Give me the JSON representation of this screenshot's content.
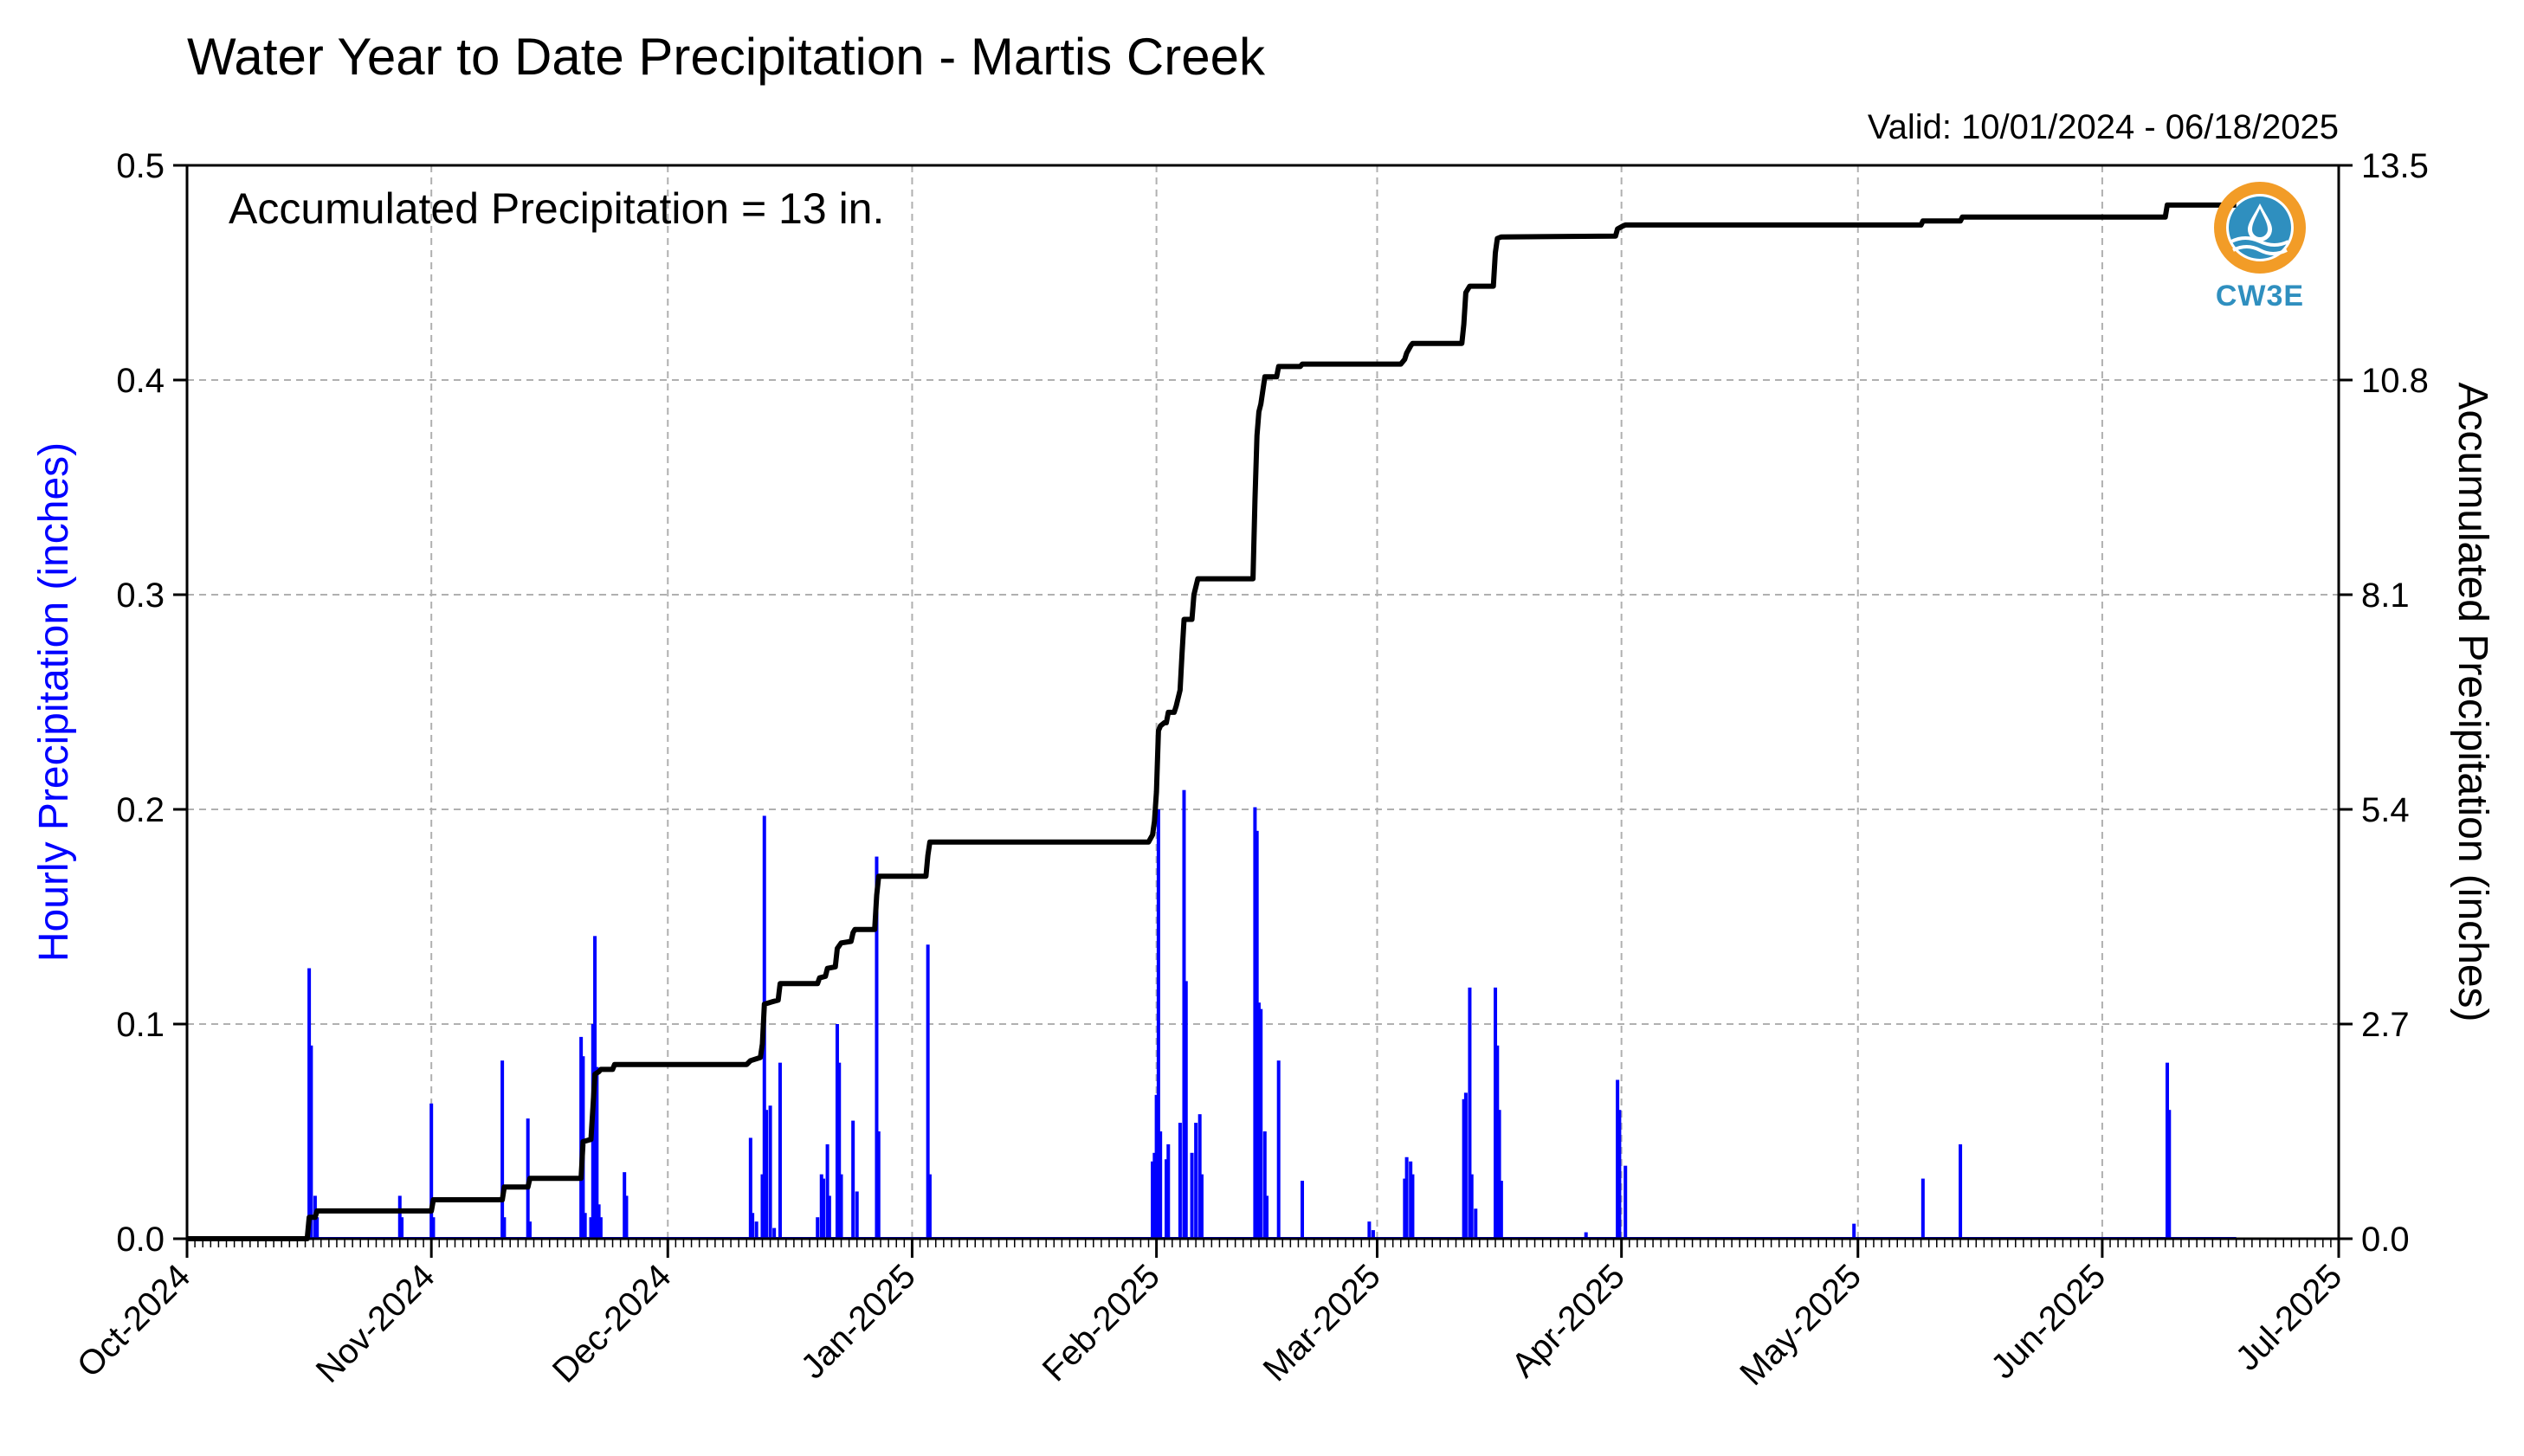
{
  "chart_data": {
    "type": "bar+line",
    "title": "Water Year to Date Precipitation - Martis Creek",
    "subtitle": "Valid: 10/01/2024 - 06/18/2025",
    "annotation": "Accumulated Precipitation = 13 in.",
    "ylabel_left": "Hourly Precipitation (inches)",
    "ylabel_right": "Accumulated Precipitation (inches)",
    "y_left_lim": [
      0,
      0.5
    ],
    "y_right_lim": [
      0,
      13.5
    ],
    "y_left_ticks": [
      "0.0",
      "0.1",
      "0.2",
      "0.3",
      "0.4",
      "0.5"
    ],
    "y_right_ticks": [
      "0.0",
      "2.7",
      "5.4",
      "8.1",
      "10.8",
      "13.5"
    ],
    "x_start": "2024-10-01",
    "x_end": "2025-07-01",
    "x_ticks": [
      "Oct-2024",
      "Nov-2024",
      "Dec-2024",
      "Jan-2025",
      "Feb-2025",
      "Mar-2025",
      "Apr-2025",
      "May-2025",
      "Jun-2025",
      "Jul-2025"
    ],
    "grid": true,
    "colors": {
      "hourly": "#0000ff",
      "accumulated": "#000000",
      "grid": "#b0b0b0",
      "left_axis_label": "#0000ff"
    },
    "hourly_series": {
      "name": "Hourly Precipitation",
      "points": [
        [
          "2024-10-16T12",
          0.126
        ],
        [
          "2024-10-16T18",
          0.09
        ],
        [
          "2024-10-17T06",
          0.02
        ],
        [
          "2024-10-17T12",
          0.01
        ],
        [
          "2024-10-28T00",
          0.02
        ],
        [
          "2024-10-28T06",
          0.01
        ],
        [
          "2024-11-01T00",
          0.063
        ],
        [
          "2024-11-01T06",
          0.01
        ],
        [
          "2024-11-10T00",
          0.083
        ],
        [
          "2024-11-10T06",
          0.01
        ],
        [
          "2024-11-13T06",
          0.056
        ],
        [
          "2024-11-13T12",
          0.008
        ],
        [
          "2024-11-20T00",
          0.094
        ],
        [
          "2024-11-20T06",
          0.085
        ],
        [
          "2024-11-20T12",
          0.012
        ],
        [
          "2024-11-21T06",
          0.01
        ],
        [
          "2024-11-21T12",
          0.1
        ],
        [
          "2024-11-21T18",
          0.141
        ],
        [
          "2024-11-22T00",
          0.08
        ],
        [
          "2024-11-22T06",
          0.016
        ],
        [
          "2024-11-22T12",
          0.01
        ],
        [
          "2024-11-25T12",
          0.031
        ],
        [
          "2024-11-25T18",
          0.02
        ],
        [
          "2024-12-11T12",
          0.047
        ],
        [
          "2024-12-11T18",
          0.012
        ],
        [
          "2024-12-12T06",
          0.008
        ],
        [
          "2024-12-13T00",
          0.03
        ],
        [
          "2024-12-13T06",
          0.197
        ],
        [
          "2024-12-13T12",
          0.06
        ],
        [
          "2024-12-14T00",
          0.062
        ],
        [
          "2024-12-14T12",
          0.005
        ],
        [
          "2024-12-15T06",
          0.082
        ],
        [
          "2024-12-20T00",
          0.01
        ],
        [
          "2024-12-20T12",
          0.03
        ],
        [
          "2024-12-20T18",
          0.028
        ],
        [
          "2024-12-21T06",
          0.044
        ],
        [
          "2024-12-21T12",
          0.02
        ],
        [
          "2024-12-22T12",
          0.1
        ],
        [
          "2024-12-22T18",
          0.082
        ],
        [
          "2024-12-23T00",
          0.03
        ],
        [
          "2024-12-24T12",
          0.055
        ],
        [
          "2024-12-25T00",
          0.022
        ],
        [
          "2024-12-27T12",
          0.178
        ],
        [
          "2024-12-27T18",
          0.05
        ],
        [
          "2025-01-03T00",
          0.137
        ],
        [
          "2025-01-03T06",
          0.03
        ],
        [
          "2025-01-31T12",
          0.036
        ],
        [
          "2025-01-31T18",
          0.04
        ],
        [
          "2025-02-01T00",
          0.067
        ],
        [
          "2025-02-01T06",
          0.2
        ],
        [
          "2025-02-01T12",
          0.05
        ],
        [
          "2025-02-02T06",
          0.037
        ],
        [
          "2025-02-02T12",
          0.044
        ],
        [
          "2025-02-04T00",
          0.054
        ],
        [
          "2025-02-04T12",
          0.209
        ],
        [
          "2025-02-04T18",
          0.12
        ],
        [
          "2025-02-05T12",
          0.04
        ],
        [
          "2025-02-06T00",
          0.054
        ],
        [
          "2025-02-06T12",
          0.058
        ],
        [
          "2025-02-06T18",
          0.03
        ],
        [
          "2025-02-13T12",
          0.201
        ],
        [
          "2025-02-13T18",
          0.19
        ],
        [
          "2025-02-14T00",
          0.11
        ],
        [
          "2025-02-14T06",
          0.107
        ],
        [
          "2025-02-14T18",
          0.05
        ],
        [
          "2025-02-15T00",
          0.02
        ],
        [
          "2025-02-16T12",
          0.083
        ],
        [
          "2025-02-19T12",
          0.027
        ],
        [
          "2025-02-28T00",
          0.008
        ],
        [
          "2025-02-28T12",
          0.004
        ],
        [
          "2025-03-04T12",
          0.028
        ],
        [
          "2025-03-04T18",
          0.038
        ],
        [
          "2025-03-05T06",
          0.036
        ],
        [
          "2025-03-05T12",
          0.03
        ],
        [
          "2025-03-12T00",
          0.065
        ],
        [
          "2025-03-12T06",
          0.068
        ],
        [
          "2025-03-12T18",
          0.117
        ],
        [
          "2025-03-13T00",
          0.03
        ],
        [
          "2025-03-13T12",
          0.014
        ],
        [
          "2025-03-16T00",
          0.117
        ],
        [
          "2025-03-16T06",
          0.09
        ],
        [
          "2025-03-16T12",
          0.06
        ],
        [
          "2025-03-16T18",
          0.027
        ],
        [
          "2025-03-27T12",
          0.003
        ],
        [
          "2025-03-31T12",
          0.074
        ],
        [
          "2025-03-31T18",
          0.06
        ],
        [
          "2025-04-01T12",
          0.034
        ],
        [
          "2025-04-30T12",
          0.007
        ],
        [
          "2025-05-09T06",
          0.028
        ],
        [
          "2025-05-14T00",
          0.044
        ],
        [
          "2025-06-09T06",
          0.082
        ],
        [
          "2025-06-09T12",
          0.06
        ]
      ]
    },
    "accumulated_series": {
      "name": "Accumulated Precipitation",
      "points": [
        [
          "2024-10-01T00",
          0.0
        ],
        [
          "2024-10-16T06",
          0.0
        ],
        [
          "2024-10-16T12",
          0.27
        ],
        [
          "2024-10-17T06",
          0.27
        ],
        [
          "2024-10-17T12",
          0.35
        ],
        [
          "2024-11-01T00",
          0.35
        ],
        [
          "2024-11-01T06",
          0.49
        ],
        [
          "2024-11-10T00",
          0.49
        ],
        [
          "2024-11-10T06",
          0.65
        ],
        [
          "2024-11-13T06",
          0.65
        ],
        [
          "2024-11-13T12",
          0.76
        ],
        [
          "2024-11-20T00",
          0.76
        ],
        [
          "2024-11-20T06",
          1.22
        ],
        [
          "2024-11-21T06",
          1.25
        ],
        [
          "2024-11-21T12",
          1.65
        ],
        [
          "2024-11-21T18",
          2.07
        ],
        [
          "2024-11-22T06",
          2.1
        ],
        [
          "2024-11-22T12",
          2.13
        ],
        [
          "2024-11-24T00",
          2.13
        ],
        [
          "2024-11-24T06",
          2.19
        ],
        [
          "2024-12-11T00",
          2.19
        ],
        [
          "2024-12-11T12",
          2.24
        ],
        [
          "2024-12-12T18",
          2.28
        ],
        [
          "2024-12-13T00",
          2.45
        ],
        [
          "2024-12-13T06",
          2.95
        ],
        [
          "2024-12-14T06",
          2.98
        ],
        [
          "2024-12-15T00",
          3.0
        ],
        [
          "2024-12-15T06",
          3.21
        ],
        [
          "2024-12-20T00",
          3.21
        ],
        [
          "2024-12-20T06",
          3.28
        ],
        [
          "2024-12-21T00",
          3.3
        ],
        [
          "2024-12-21T06",
          3.4
        ],
        [
          "2024-12-22T06",
          3.42
        ],
        [
          "2024-12-22T12",
          3.65
        ],
        [
          "2024-12-23T00",
          3.72
        ],
        [
          "2024-12-24T06",
          3.74
        ],
        [
          "2024-12-24T12",
          3.85
        ],
        [
          "2024-12-24T18",
          3.89
        ],
        [
          "2024-12-27T06",
          3.89
        ],
        [
          "2024-12-27T12",
          4.32
        ],
        [
          "2024-12-27T18",
          4.56
        ],
        [
          "2025-01-02T18",
          4.56
        ],
        [
          "2025-01-03T00",
          4.82
        ],
        [
          "2025-01-03T06",
          4.99
        ],
        [
          "2025-01-31T00",
          4.99
        ],
        [
          "2025-01-31T12",
          5.08
        ],
        [
          "2025-01-31T18",
          5.25
        ],
        [
          "2025-02-01T00",
          5.62
        ],
        [
          "2025-02-01T06",
          6.39
        ],
        [
          "2025-02-01T12",
          6.45
        ],
        [
          "2025-02-02T00",
          6.49
        ],
        [
          "2025-02-02T06",
          6.49
        ],
        [
          "2025-02-02T12",
          6.62
        ],
        [
          "2025-02-03T06",
          6.62
        ],
        [
          "2025-02-03T12",
          6.7
        ],
        [
          "2025-02-04T00",
          6.9
        ],
        [
          "2025-02-04T06",
          7.37
        ],
        [
          "2025-02-04T12",
          7.79
        ],
        [
          "2025-02-05T12",
          7.79
        ],
        [
          "2025-02-05T18",
          8.1
        ],
        [
          "2025-02-06T06",
          8.3
        ],
        [
          "2025-02-13T06",
          8.3
        ],
        [
          "2025-02-13T12",
          9.3
        ],
        [
          "2025-02-13T18",
          10.1
        ],
        [
          "2025-02-14T00",
          10.4
        ],
        [
          "2025-02-14T06",
          10.5
        ],
        [
          "2025-02-14T18",
          10.84
        ],
        [
          "2025-02-16T06",
          10.84
        ],
        [
          "2025-02-16T12",
          10.97
        ],
        [
          "2025-02-19T06",
          10.97
        ],
        [
          "2025-02-19T12",
          11.0
        ],
        [
          "2025-03-04T00",
          11.0
        ],
        [
          "2025-03-04T12",
          11.06
        ],
        [
          "2025-03-04T18",
          11.14
        ],
        [
          "2025-03-05T06",
          11.23
        ],
        [
          "2025-03-05T12",
          11.26
        ],
        [
          "2025-03-11T18",
          11.26
        ],
        [
          "2025-03-12T00",
          11.5
        ],
        [
          "2025-03-12T06",
          11.9
        ],
        [
          "2025-03-12T18",
          11.98
        ],
        [
          "2025-03-15T18",
          11.98
        ],
        [
          "2025-03-16T00",
          12.4
        ],
        [
          "2025-03-16T06",
          12.58
        ],
        [
          "2025-03-16T18",
          12.6
        ],
        [
          "2025-03-31T00",
          12.61
        ],
        [
          "2025-03-31T06",
          12.61
        ],
        [
          "2025-03-31T12",
          12.7
        ],
        [
          "2025-04-01T06",
          12.74
        ],
        [
          "2025-04-01T12",
          12.75
        ],
        [
          "2025-05-09T00",
          12.75
        ],
        [
          "2025-05-09T06",
          12.8
        ],
        [
          "2025-05-14T00",
          12.8
        ],
        [
          "2025-05-14T06",
          12.85
        ],
        [
          "2025-06-09T00",
          12.85
        ],
        [
          "2025-06-09T06",
          13.0
        ],
        [
          "2025-06-18T00",
          13.0
        ]
      ]
    }
  },
  "logo": {
    "text": "CW3E",
    "icon": "cw3e-water-drop-icon",
    "ring_color": "#f29c27",
    "drop_color": "#2f8fbf"
  }
}
